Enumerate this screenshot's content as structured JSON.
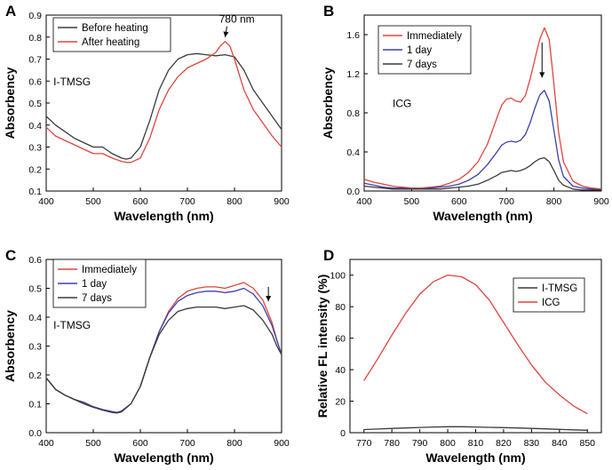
{
  "chart_data": [
    {
      "panel": "A",
      "type": "line",
      "xlabel": "Wavelength (nm)",
      "ylabel": "Absorbency",
      "xlim": [
        400,
        900
      ],
      "ylim": [
        0.1,
        0.9
      ],
      "xticks": [
        400,
        500,
        600,
        700,
        800,
        900
      ],
      "yticks": [
        0.1,
        0.2,
        0.3,
        0.4,
        0.5,
        0.6,
        0.7,
        0.8,
        0.9
      ],
      "legend_position": "top-left",
      "annotations": [
        {
          "text": "I-TMSG",
          "x": 455,
          "y": 0.58
        },
        {
          "text": "780 nm",
          "x": 805,
          "y": 0.865,
          "arrow_to": [
            780,
            0.8
          ]
        }
      ],
      "series": [
        {
          "name": "Before heating",
          "color": "#3a3a3a",
          "x": [
            400,
            410,
            420,
            440,
            460,
            480,
            500,
            510,
            520,
            540,
            560,
            570,
            580,
            600,
            620,
            640,
            660,
            680,
            700,
            720,
            740,
            760,
            780,
            800,
            820,
            840,
            860,
            880,
            900
          ],
          "y": [
            0.44,
            0.42,
            0.4,
            0.37,
            0.34,
            0.32,
            0.3,
            0.3,
            0.3,
            0.27,
            0.25,
            0.245,
            0.25,
            0.3,
            0.42,
            0.56,
            0.65,
            0.7,
            0.72,
            0.725,
            0.72,
            0.715,
            0.72,
            0.71,
            0.65,
            0.56,
            0.5,
            0.44,
            0.38
          ]
        },
        {
          "name": "After heating",
          "color": "#e0443e",
          "x": [
            400,
            410,
            420,
            440,
            460,
            480,
            500,
            510,
            520,
            540,
            560,
            570,
            580,
            600,
            620,
            640,
            660,
            680,
            700,
            720,
            740,
            760,
            770,
            780,
            790,
            800,
            820,
            840,
            860,
            880,
            900
          ],
          "y": [
            0.39,
            0.37,
            0.35,
            0.33,
            0.31,
            0.29,
            0.27,
            0.27,
            0.27,
            0.25,
            0.235,
            0.23,
            0.23,
            0.25,
            0.34,
            0.47,
            0.56,
            0.62,
            0.66,
            0.68,
            0.7,
            0.73,
            0.76,
            0.78,
            0.76,
            0.7,
            0.56,
            0.47,
            0.41,
            0.35,
            0.3
          ]
        }
      ]
    },
    {
      "panel": "B",
      "type": "line",
      "xlabel": "Wavelength (nm)",
      "ylabel": "Absorbency",
      "xlim": [
        400,
        900
      ],
      "ylim": [
        0,
        1.8
      ],
      "xticks": [
        400,
        500,
        600,
        700,
        800,
        900
      ],
      "yticks": [
        0.0,
        0.4,
        0.8,
        1.2,
        1.6
      ],
      "legend_position": "top-left",
      "annotations": [
        {
          "text": "ICG",
          "x": 480,
          "y": 0.86
        },
        {
          "text": "",
          "x": 775,
          "y": 1.52,
          "arrow_to": [
            775,
            1.16
          ]
        }
      ],
      "series": [
        {
          "name": "Immediately",
          "color": "#e0443e",
          "x": [
            400,
            420,
            440,
            460,
            480,
            500,
            520,
            540,
            560,
            580,
            600,
            620,
            640,
            660,
            680,
            690,
            700,
            710,
            720,
            730,
            740,
            750,
            760,
            770,
            780,
            790,
            800,
            810,
            820,
            840,
            860,
            880,
            900
          ],
          "y": [
            0.12,
            0.09,
            0.07,
            0.05,
            0.04,
            0.03,
            0.03,
            0.04,
            0.05,
            0.08,
            0.12,
            0.19,
            0.3,
            0.48,
            0.75,
            0.88,
            0.94,
            0.95,
            0.92,
            0.91,
            0.98,
            1.15,
            1.35,
            1.55,
            1.67,
            1.55,
            1.1,
            0.6,
            0.3,
            0.1,
            0.05,
            0.03,
            0.02
          ]
        },
        {
          "name": "1 day",
          "color": "#3b3fb0",
          "x": [
            400,
            420,
            440,
            460,
            480,
            500,
            520,
            540,
            560,
            580,
            600,
            620,
            640,
            660,
            680,
            690,
            700,
            710,
            720,
            730,
            740,
            750,
            760,
            770,
            780,
            790,
            800,
            810,
            820,
            840,
            860,
            880,
            900
          ],
          "y": [
            0.08,
            0.06,
            0.04,
            0.03,
            0.03,
            0.02,
            0.02,
            0.03,
            0.04,
            0.05,
            0.07,
            0.11,
            0.17,
            0.27,
            0.4,
            0.47,
            0.5,
            0.51,
            0.5,
            0.52,
            0.58,
            0.7,
            0.85,
            0.98,
            1.03,
            0.92,
            0.62,
            0.32,
            0.15,
            0.05,
            0.03,
            0.02,
            0.01
          ]
        },
        {
          "name": "7 days",
          "color": "#3a3a3a",
          "x": [
            400,
            420,
            440,
            460,
            480,
            500,
            520,
            540,
            560,
            580,
            600,
            620,
            640,
            660,
            680,
            690,
            700,
            710,
            720,
            730,
            740,
            750,
            760,
            770,
            780,
            790,
            800,
            810,
            820,
            840,
            860,
            880,
            900
          ],
          "y": [
            0.05,
            0.04,
            0.03,
            0.02,
            0.02,
            0.02,
            0.02,
            0.02,
            0.02,
            0.03,
            0.04,
            0.05,
            0.07,
            0.11,
            0.16,
            0.19,
            0.2,
            0.21,
            0.2,
            0.21,
            0.23,
            0.26,
            0.3,
            0.33,
            0.34,
            0.3,
            0.21,
            0.11,
            0.06,
            0.02,
            0.01,
            0.01,
            0.01
          ]
        }
      ]
    },
    {
      "panel": "C",
      "type": "line",
      "xlabel": "Wavelength (nm)",
      "ylabel": "Absorbency",
      "xlim": [
        400,
        900
      ],
      "ylim": [
        0,
        0.6
      ],
      "xticks": [
        400,
        500,
        600,
        700,
        800,
        900
      ],
      "yticks": [
        0.0,
        0.1,
        0.2,
        0.3,
        0.4,
        0.5,
        0.6
      ],
      "legend_position": "top-left",
      "annotations": [
        {
          "text": "I-TMSG",
          "x": 455,
          "y": 0.36
        },
        {
          "text": "",
          "x": 872,
          "y": 0.505,
          "arrow_to": [
            872,
            0.455
          ]
        }
      ],
      "series": [
        {
          "name": "Immediately",
          "color": "#e0443e",
          "x": [
            400,
            410,
            420,
            440,
            460,
            480,
            500,
            520,
            540,
            550,
            560,
            580,
            600,
            620,
            640,
            660,
            680,
            700,
            720,
            740,
            760,
            780,
            800,
            820,
            840,
            860,
            880,
            890,
            900
          ],
          "y": [
            0.19,
            0.17,
            0.15,
            0.13,
            0.115,
            0.105,
            0.09,
            0.08,
            0.073,
            0.07,
            0.075,
            0.1,
            0.16,
            0.26,
            0.35,
            0.42,
            0.465,
            0.49,
            0.5,
            0.505,
            0.505,
            0.5,
            0.51,
            0.52,
            0.5,
            0.46,
            0.38,
            0.32,
            0.27
          ]
        },
        {
          "name": "1 day",
          "color": "#3b3fb0",
          "x": [
            400,
            410,
            420,
            440,
            460,
            480,
            500,
            520,
            540,
            550,
            560,
            580,
            600,
            620,
            640,
            660,
            680,
            700,
            720,
            740,
            760,
            780,
            800,
            820,
            840,
            860,
            880,
            890,
            900
          ],
          "y": [
            0.19,
            0.17,
            0.15,
            0.13,
            0.115,
            0.105,
            0.09,
            0.08,
            0.073,
            0.07,
            0.075,
            0.1,
            0.16,
            0.26,
            0.35,
            0.415,
            0.455,
            0.475,
            0.485,
            0.49,
            0.49,
            0.485,
            0.49,
            0.5,
            0.48,
            0.44,
            0.37,
            0.32,
            0.27
          ]
        },
        {
          "name": "7 days",
          "color": "#3a3a3a",
          "x": [
            400,
            410,
            420,
            440,
            460,
            480,
            500,
            520,
            540,
            550,
            560,
            580,
            600,
            620,
            640,
            660,
            680,
            700,
            720,
            740,
            760,
            780,
            800,
            820,
            840,
            860,
            880,
            890,
            900
          ],
          "y": [
            0.19,
            0.17,
            0.15,
            0.13,
            0.115,
            0.1,
            0.088,
            0.078,
            0.07,
            0.068,
            0.072,
            0.1,
            0.16,
            0.26,
            0.34,
            0.39,
            0.42,
            0.43,
            0.435,
            0.435,
            0.435,
            0.43,
            0.435,
            0.44,
            0.425,
            0.39,
            0.34,
            0.3,
            0.27
          ]
        }
      ]
    },
    {
      "panel": "D",
      "type": "line",
      "xlabel": "Wavelength (nm)",
      "ylabel": "Relative FL intensity (%)",
      "xlim": [
        765,
        855
      ],
      "ylim": [
        0,
        110
      ],
      "xticks": [
        770,
        780,
        790,
        800,
        810,
        820,
        830,
        840,
        850
      ],
      "yticks": [
        0,
        20,
        40,
        60,
        80,
        100
      ],
      "legend_position": "top-right",
      "annotations": [],
      "series": [
        {
          "name": "I-TMSG",
          "color": "#3a3a3a",
          "x": [
            770,
            775,
            780,
            785,
            790,
            795,
            800,
            805,
            810,
            815,
            820,
            825,
            830,
            835,
            840,
            845,
            850
          ],
          "y": [
            2.0,
            2.3,
            2.7,
            3.0,
            3.3,
            3.6,
            3.8,
            3.8,
            3.6,
            3.4,
            3.2,
            3.0,
            2.7,
            2.4,
            2.1,
            1.8,
            1.5
          ]
        },
        {
          "name": "ICG",
          "color": "#e0443e",
          "x": [
            770,
            775,
            780,
            785,
            790,
            795,
            800,
            805,
            810,
            815,
            820,
            825,
            830,
            835,
            840,
            845,
            850
          ],
          "y": [
            33,
            47,
            62,
            76,
            88,
            96,
            100,
            99,
            94,
            84,
            70,
            56,
            43,
            32,
            24,
            17,
            12
          ]
        }
      ]
    }
  ]
}
